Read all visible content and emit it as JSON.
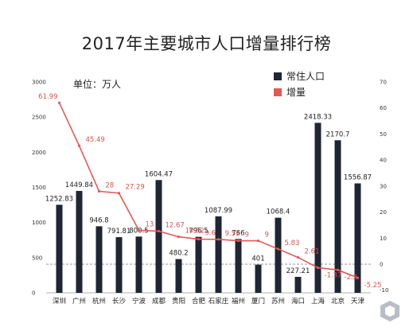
{
  "chart_data": {
    "type": "bar",
    "title": "2017年主要城市人口增量排行榜",
    "unit": "单位：万人",
    "categories": [
      "深圳",
      "广州",
      "杭州",
      "长沙",
      "宁波",
      "成都",
      "贵阳",
      "合肥",
      "石家庄",
      "福州",
      "厦门",
      "苏州",
      "海口",
      "上海",
      "北京",
      "天津"
    ],
    "series": [
      {
        "name": "常住人口",
        "type": "bar",
        "axis": "left",
        "color": "#1f2533",
        "values": [
          1252.83,
          1449.84,
          946.8,
          791.81,
          800.5,
          1604.47,
          480.2,
          796.5,
          1087.99,
          766,
          401,
          1068.4,
          227.21,
          2418.33,
          2170.7,
          1556.87
        ],
        "labels": [
          "1252.83",
          "1449.84",
          "946.8",
          "791.81",
          "800.5",
          "1604.47",
          "480.2",
          "796.5",
          "1087.99",
          "766",
          "401",
          "1068.4",
          "227.21",
          "2418.33",
          "2170.7",
          "1556.87"
        ]
      },
      {
        "name": "增量",
        "type": "line",
        "axis": "right",
        "color": "#e05a55",
        "values": [
          61.99,
          45.49,
          28,
          27.29,
          13,
          12.67,
          10.52,
          9.6,
          9.53,
          9,
          9,
          5.83,
          2.61,
          -1.37,
          -2.2,
          -5.25
        ],
        "labels": [
          "61.99",
          "45.49",
          "28",
          "27.29",
          "13",
          "12.67",
          "10.52",
          "9.6",
          "9.53",
          "9",
          "9",
          "5.83",
          "2.61",
          "-1.37",
          "-2.2",
          "-5.25"
        ]
      }
    ],
    "y_left": {
      "ylim": [
        0,
        3000
      ],
      "ticks": [
        "0",
        "500",
        "1000",
        "1500",
        "2000",
        "2500",
        "3000"
      ]
    },
    "y_right": {
      "ylim": [
        -10,
        70
      ],
      "ticks": [
        "-10",
        "0",
        "10",
        "20",
        "30",
        "40",
        "50",
        "60",
        "70"
      ]
    },
    "zero_reference_line": "dashed",
    "legend_position": "top-right",
    "grid": false
  }
}
